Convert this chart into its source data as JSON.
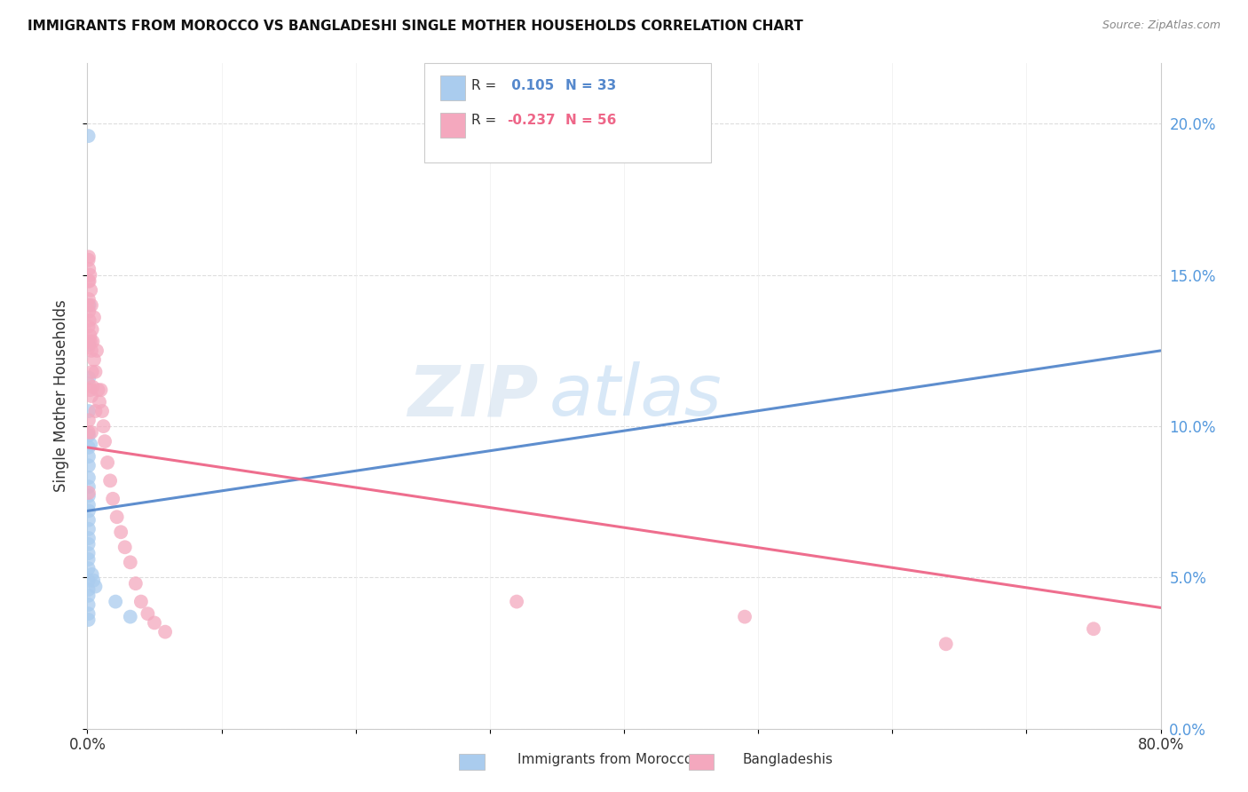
{
  "title": "IMMIGRANTS FROM MOROCCO VS BANGLADESHI SINGLE MOTHER HOUSEHOLDS CORRELATION CHART",
  "source": "Source: ZipAtlas.com",
  "xlabel_blue": "Immigrants from Morocco",
  "xlabel_pink": "Bangladeshis",
  "ylabel": "Single Mother Households",
  "r_blue": 0.105,
  "n_blue": 33,
  "r_pink": -0.237,
  "n_pink": 56,
  "blue_color": "#aaccee",
  "pink_color": "#f4a8be",
  "blue_line_color": "#5588cc",
  "pink_line_color": "#ee6688",
  "watermark_zip": "ZIP",
  "watermark_atlas": "atlas",
  "xmin": 0.0,
  "xmax": 0.8,
  "ymin": 0.0,
  "ymax": 0.22,
  "blue_scatter_x": [
    0.0008,
    0.0015,
    0.001,
    0.0012,
    0.001,
    0.001,
    0.001,
    0.001,
    0.001,
    0.001,
    0.001,
    0.001,
    0.001,
    0.001,
    0.001,
    0.001,
    0.001,
    0.0008,
    0.0008,
    0.0008,
    0.0008,
    0.0008,
    0.0008,
    0.0008,
    0.0008,
    0.0008,
    0.0008,
    0.0025,
    0.0035,
    0.0045,
    0.006,
    0.021,
    0.032
  ],
  "blue_scatter_y": [
    0.196,
    0.14,
    0.127,
    0.116,
    0.105,
    0.097,
    0.093,
    0.09,
    0.087,
    0.083,
    0.08,
    0.077,
    0.074,
    0.072,
    0.069,
    0.066,
    0.063,
    0.061,
    0.058,
    0.056,
    0.053,
    0.049,
    0.046,
    0.044,
    0.041,
    0.038,
    0.036,
    0.094,
    0.051,
    0.049,
    0.047,
    0.042,
    0.037
  ],
  "pink_scatter_x": [
    0.0008,
    0.0008,
    0.0008,
    0.0008,
    0.0008,
    0.0008,
    0.001,
    0.001,
    0.001,
    0.001,
    0.001,
    0.001,
    0.0012,
    0.0012,
    0.0015,
    0.0015,
    0.002,
    0.002,
    0.002,
    0.0025,
    0.0025,
    0.003,
    0.003,
    0.003,
    0.003,
    0.0035,
    0.0035,
    0.004,
    0.004,
    0.005,
    0.005,
    0.006,
    0.006,
    0.007,
    0.008,
    0.009,
    0.01,
    0.011,
    0.012,
    0.013,
    0.015,
    0.017,
    0.019,
    0.022,
    0.025,
    0.028,
    0.032,
    0.036,
    0.04,
    0.045,
    0.05,
    0.058,
    0.32,
    0.49,
    0.64,
    0.75
  ],
  "pink_scatter_y": [
    0.155,
    0.148,
    0.14,
    0.133,
    0.126,
    0.098,
    0.156,
    0.142,
    0.128,
    0.114,
    0.102,
    0.078,
    0.152,
    0.138,
    0.148,
    0.135,
    0.15,
    0.13,
    0.112,
    0.145,
    0.128,
    0.14,
    0.125,
    0.11,
    0.098,
    0.132,
    0.118,
    0.128,
    0.113,
    0.136,
    0.122,
    0.118,
    0.105,
    0.125,
    0.112,
    0.108,
    0.112,
    0.105,
    0.1,
    0.095,
    0.088,
    0.082,
    0.076,
    0.07,
    0.065,
    0.06,
    0.055,
    0.048,
    0.042,
    0.038,
    0.035,
    0.032,
    0.042,
    0.037,
    0.028,
    0.033
  ],
  "blue_line_x": [
    0.0,
    0.8
  ],
  "blue_line_y": [
    0.072,
    0.125
  ],
  "pink_line_x": [
    0.0,
    0.8
  ],
  "pink_line_y": [
    0.093,
    0.04
  ],
  "yticks": [
    0.0,
    0.05,
    0.1,
    0.15,
    0.2
  ],
  "ytick_labels": [
    "0.0%",
    "5.0%",
    "10.0%",
    "15.0%",
    "20.0%"
  ],
  "xtick_labels": [
    "0.0%",
    "",
    "",
    "",
    "",
    "",
    "",
    "",
    "80.0%"
  ],
  "xtick_vals": [
    0.0,
    0.1,
    0.2,
    0.3,
    0.4,
    0.5,
    0.6,
    0.7,
    0.8
  ]
}
